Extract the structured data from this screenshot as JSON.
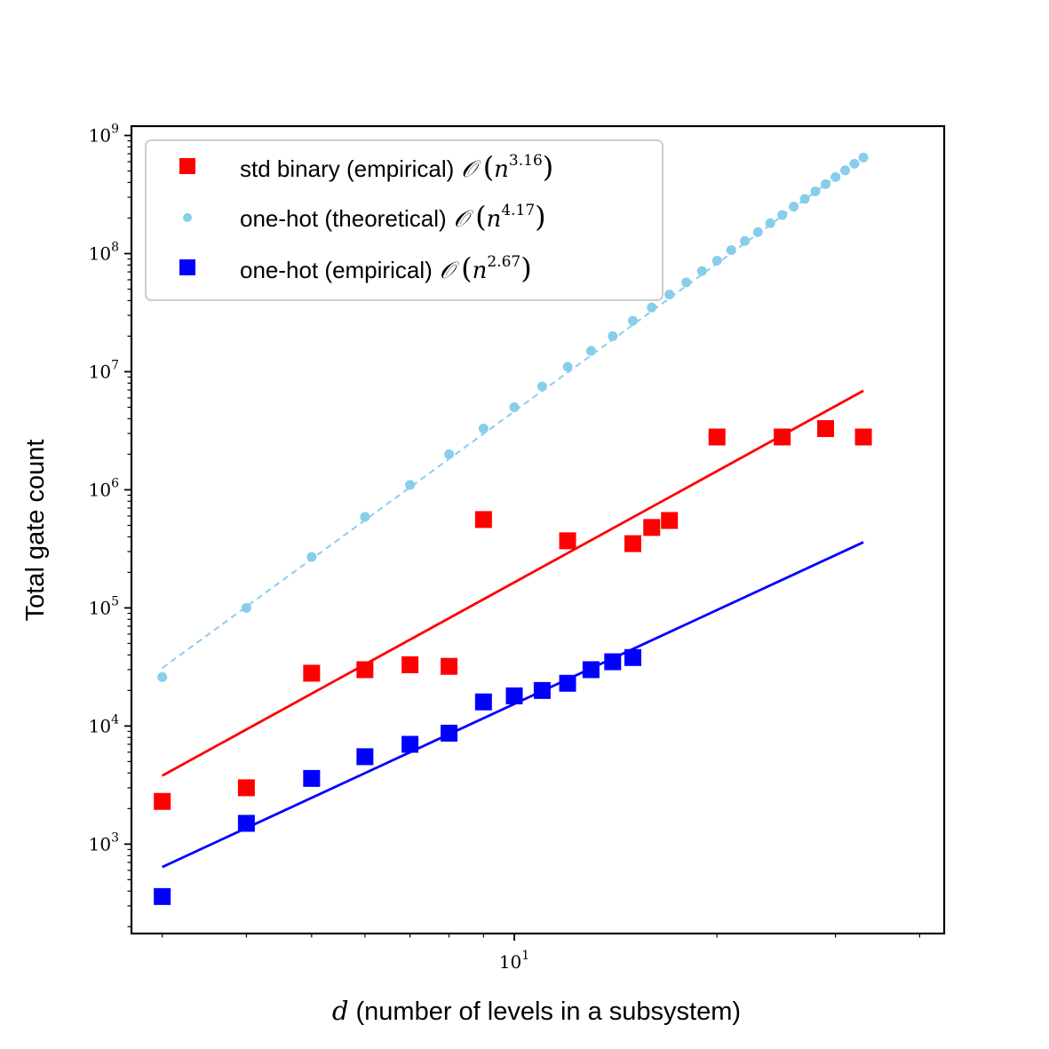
{
  "chart_data": {
    "type": "scatter",
    "xscale": "log",
    "yscale": "log",
    "xlim": [
      2.7,
      43.5
    ],
    "ylim": [
      175,
      1200000000
    ],
    "xlabel_var": "d",
    "xlabel": "(number of levels in a subsystem)",
    "ylabel": "Total gate count",
    "x_ticks": [
      {
        "base": "10",
        "exp": "1",
        "value": 10
      }
    ],
    "y_ticks": [
      {
        "base": "10",
        "exp": "3",
        "value": 1000
      },
      {
        "base": "10",
        "exp": "4",
        "value": 10000
      },
      {
        "base": "10",
        "exp": "5",
        "value": 100000
      },
      {
        "base": "10",
        "exp": "6",
        "value": 1000000
      },
      {
        "base": "10",
        "exp": "7",
        "value": 10000000
      },
      {
        "base": "10",
        "exp": "8",
        "value": 100000000
      },
      {
        "base": "10",
        "exp": "9",
        "value": 1000000000
      }
    ],
    "legend_position": "top-left",
    "series": [
      {
        "name": "std binary (empirical)",
        "order_symbol": "𝒪",
        "order_exp": "3.16",
        "color": "#ff0000",
        "marker": "square",
        "x": [
          3,
          4,
          5,
          6,
          7,
          8,
          9,
          12,
          15,
          16,
          17,
          20,
          25,
          29,
          33
        ],
        "y": [
          2300,
          3000,
          28000,
          30000,
          33000,
          32000,
          560000,
          370000,
          350000,
          480000,
          550000,
          2800000,
          2800000,
          3300000,
          2800000
        ],
        "fit": {
          "x": [
            3,
            33
          ],
          "y": [
            3800,
            6900000
          ]
        }
      },
      {
        "name": "one-hot (theoretical)",
        "order_symbol": "𝒪",
        "order_exp": "4.17",
        "color": "#87ceeb",
        "marker": "dot",
        "x": [
          3,
          4,
          5,
          6,
          7,
          8,
          9,
          10,
          11,
          12,
          13,
          14,
          15,
          16,
          17,
          18,
          19,
          20,
          21,
          22,
          23,
          24,
          25,
          26,
          27,
          28,
          29,
          30,
          31,
          32,
          33
        ],
        "y": [
          26000,
          100000,
          270000,
          590000,
          1100000,
          2000000,
          3300000,
          5000000,
          7500000,
          11000000,
          15000000,
          20000000,
          27000000,
          35000000,
          45000000,
          57000000,
          71000000,
          87000000,
          107000000,
          128000000,
          152000000,
          181000000,
          212000000,
          250000000,
          290000000,
          336000000,
          387000000,
          444000000,
          507000000,
          576000000,
          650000000
        ],
        "fit": {
          "x": [
            3,
            33
          ],
          "y": [
            31000,
            660000000
          ]
        }
      },
      {
        "name": "one-hot (empirical)",
        "order_symbol": "𝒪",
        "order_exp": "2.67",
        "color": "#0000ff",
        "marker": "square",
        "x": [
          3,
          4,
          5,
          6,
          7,
          8,
          9,
          10,
          11,
          12,
          13,
          14,
          15
        ],
        "y": [
          360,
          1500,
          3600,
          5500,
          7000,
          8700,
          16000,
          18000,
          20000,
          23000,
          30000,
          35000,
          38000
        ],
        "fit": {
          "x": [
            3,
            33
          ],
          "y": [
            640,
            360000
          ]
        }
      }
    ]
  }
}
